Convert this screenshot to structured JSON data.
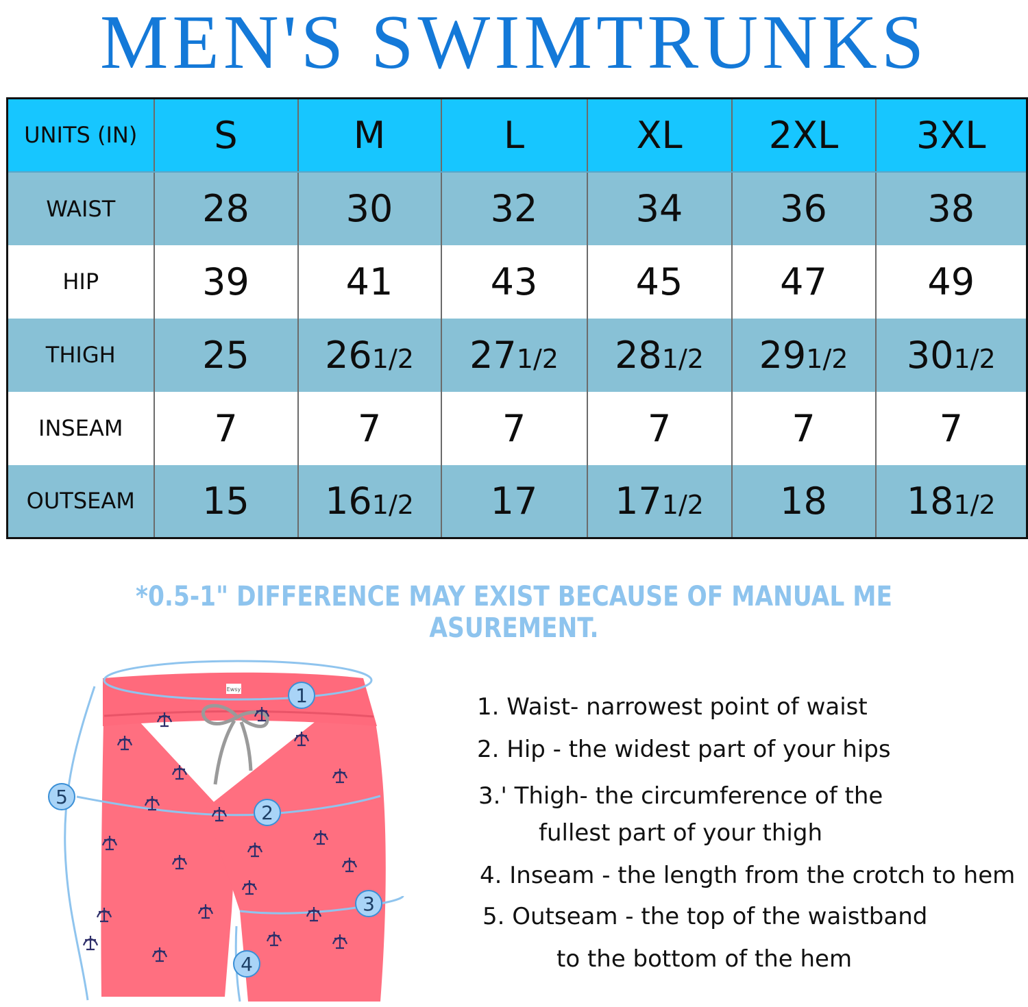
{
  "title": "MEN'S SWIMTRUNKS",
  "table": {
    "units_label": "UNITS (IN)",
    "sizes": [
      "S",
      "M",
      "L",
      "XL",
      "2XL",
      "3XL"
    ],
    "rows": [
      {
        "label": "WAIST",
        "values": [
          {
            "n": "28"
          },
          {
            "n": "30"
          },
          {
            "n": "32"
          },
          {
            "n": "34"
          },
          {
            "n": "36"
          },
          {
            "n": "38"
          }
        ]
      },
      {
        "label": "HIP",
        "values": [
          {
            "n": "39"
          },
          {
            "n": "41"
          },
          {
            "n": "43"
          },
          {
            "n": "45"
          },
          {
            "n": "47"
          },
          {
            "n": "49"
          }
        ]
      },
      {
        "label": "THIGH",
        "values": [
          {
            "n": "25"
          },
          {
            "n": "26",
            "f": "1/2"
          },
          {
            "n": "27",
            "f": "1/2"
          },
          {
            "n": "28",
            "f": "1/2"
          },
          {
            "n": "29",
            "f": "1/2"
          },
          {
            "n": "30",
            "f": "1/2"
          }
        ]
      },
      {
        "label": "INSEAM",
        "values": [
          {
            "n": "7"
          },
          {
            "n": "7"
          },
          {
            "n": "7"
          },
          {
            "n": "7"
          },
          {
            "n": "7"
          },
          {
            "n": "7"
          }
        ]
      },
      {
        "label": "OUTSEAM",
        "values": [
          {
            "n": "15"
          },
          {
            "n": "16",
            "f": "1/2"
          },
          {
            "n": "17"
          },
          {
            "n": "17",
            "f": "1/2"
          },
          {
            "n": "18"
          },
          {
            "n": "18",
            "f": "1/2"
          }
        ]
      }
    ]
  },
  "note": "*0.5-1\" DIFFERENCE MAY EXIST BECAUSE OF MANUAL ME ASUREMENT.",
  "illustration": {
    "markers": [
      "1",
      "2",
      "3",
      "4",
      "5"
    ],
    "brand_tag": "Ewsy",
    "colors": {
      "shorts": "#ff6f80",
      "line": "#8fc4ee",
      "marker_fill": "#a9d4f7",
      "marker_stroke": "#3a8fd6",
      "print": "#2f2f6a"
    }
  },
  "legend": {
    "item1": "1. Waist- narrowest point of waist",
    "item2": "2. Hip - the widest part of your hips",
    "item3_line1": "3.' Thigh- the circumference of the",
    "item3_line2": "fullest part of your thigh",
    "item4": "4. Inseam - the length from the crotch to hem",
    "item5_line1": "5. Outseam - the top of the waistband",
    "item5_line2": "to the bottom of the hem"
  },
  "colors": {
    "title": "#1479d8",
    "header_bg": "#17c6ff",
    "alt_row_bg": "#88c1d6",
    "note": "#8ec4ee"
  }
}
